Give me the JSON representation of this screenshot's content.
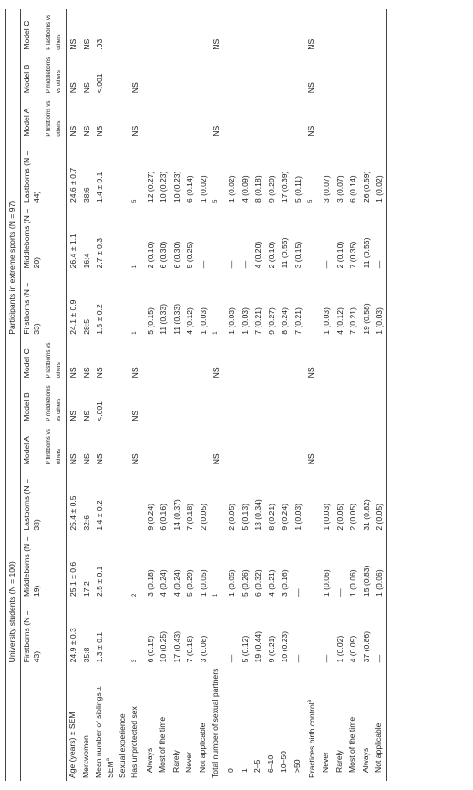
{
  "table": {
    "groups": [
      "University students (N = 100)",
      "Participants in extreme sports (N = 97)"
    ],
    "columns": [
      "Firstborns (N = 43)",
      "Middleborns (N = 19)",
      "Lastborns (N = 38)",
      "Model A",
      "Model B",
      "Model C",
      "Firstborns (N = 33)",
      "Middleborns (N = 20)",
      "Lastborns (N = 44)",
      "Model A",
      "Model B",
      "Model C"
    ],
    "subheaders": [
      "P firstborns vs others",
      "P middleborns vs others",
      "P lastborns vs others"
    ],
    "rows": [
      {
        "label": "Age (years) ± SEM",
        "cells": [
          "24.9 ± 0.3",
          "25.1 ± 0.6",
          "25.4 ± 0.5",
          "NS",
          "NS",
          "NS",
          "24.1 ± 0.9",
          "26.4 ± 1.1",
          "24.6 ± 0.7",
          "NS",
          "NS",
          "NS"
        ]
      },
      {
        "label": "Men:women",
        "cells": [
          "35:8",
          "17:2",
          "32:6",
          "NS",
          "NS",
          "NS",
          "28:5",
          "16:4",
          "38:6",
          "NS",
          "NS",
          "NS"
        ]
      },
      {
        "label": "Mean number of siblings ± SEM",
        "note": "a",
        "cells": [
          "1.3 ± 0.1",
          "2.5 ± 0.1",
          "1.4 ± 0.2",
          "NS",
          "<.001",
          "NS",
          "1.5 ± 0.2",
          "2.7 ± 0.3",
          "1.4 ± 0.1",
          "NS",
          "<.001",
          ".03"
        ]
      },
      {
        "label": "Sexual experience",
        "cells": [
          null,
          null,
          null,
          null,
          null,
          null,
          null,
          null,
          null,
          null,
          null,
          null
        ]
      },
      {
        "label": "Has unprotected sex",
        "cells": [
          "3",
          "2",
          null,
          "NS",
          "NS",
          "NS",
          "1",
          "1",
          "5",
          "NS",
          "NS",
          null
        ]
      },
      {
        "label": "Always",
        "indent": true,
        "cells": [
          "6 (0.15)",
          "3 (0.18)",
          "9 (0.24)",
          null,
          null,
          null,
          "5 (0.15)",
          "2 (0.10)",
          "12 (0.27)",
          null,
          null,
          null
        ]
      },
      {
        "label": "Most of the time",
        "indent": true,
        "cells": [
          "10 (0.25)",
          "4 (0.24)",
          "6 (0.16)",
          null,
          null,
          null,
          "11 (0.33)",
          "6 (0.30)",
          "10 (0.23)",
          null,
          null,
          null
        ]
      },
      {
        "label": "Rarely",
        "indent": true,
        "cells": [
          "17 (0.43)",
          "4 (0.24)",
          "14 (0.37)",
          null,
          null,
          null,
          "11 (0.33)",
          "6 (0.30)",
          "10 (0.23)",
          null,
          null,
          null
        ]
      },
      {
        "label": "Never",
        "indent": true,
        "cells": [
          "7 (0.18)",
          "5 (0.29)",
          "7 (0.18)",
          null,
          null,
          null,
          "4 (0.12)",
          "5 (0.25)",
          "6 (0.14)",
          null,
          null,
          null
        ]
      },
      {
        "label": "Not applicable",
        "indent": true,
        "cells": [
          "3 (0.08)",
          "1 (0.05)",
          "2 (0.05)",
          null,
          null,
          null,
          "1 (0.03)",
          "—",
          "1 (0.02)",
          null,
          null,
          null
        ]
      },
      {
        "label": "Total number of sexual partners",
        "cells": [
          null,
          "1",
          null,
          "NS",
          null,
          "NS",
          "1",
          null,
          "5",
          "NS",
          null,
          "NS"
        ]
      },
      {
        "label": "0",
        "indent": true,
        "cells": [
          "—",
          "1 (0.05)",
          "2 (0.05)",
          null,
          null,
          null,
          "1 (0.03)",
          "—",
          "1 (0.02)",
          null,
          null,
          null
        ]
      },
      {
        "label": "1",
        "indent": true,
        "cells": [
          "5 (0.12)",
          "5 (0.26)",
          "5 (0.13)",
          null,
          null,
          null,
          "1 (0.03)",
          "—",
          "4 (0.09)",
          null,
          null,
          null
        ]
      },
      {
        "label": "2–5",
        "indent": true,
        "cells": [
          "19 (0.44)",
          "6 (0.32)",
          "13 (0.34)",
          null,
          null,
          null,
          "7 (0.21)",
          "4 (0.20)",
          "8 (0.18)",
          null,
          null,
          null
        ]
      },
      {
        "label": "6–10",
        "indent": true,
        "cells": [
          "9 (0.21)",
          "4 (0.21)",
          "8 (0.21)",
          null,
          null,
          null,
          "9 (0.27)",
          "2 (0.10)",
          "9 (0.20)",
          null,
          null,
          null
        ]
      },
      {
        "label": "10–50",
        "indent": true,
        "cells": [
          "10 (0.23)",
          "3 (0.16)",
          "9 (0.24)",
          null,
          null,
          null,
          "8 (0.24)",
          "11 (0.55)",
          "17 (0.39)",
          null,
          null,
          null
        ]
      },
      {
        "label": ">50",
        "indent": true,
        "cells": [
          "—",
          "—",
          "1 (0.03)",
          null,
          null,
          null,
          "7 (0.21)",
          "3 (0.15)",
          "5 (0.11)",
          null,
          null,
          null
        ]
      },
      {
        "label": "Practices birth control",
        "note": "a",
        "cells": [
          null,
          null,
          null,
          "NS",
          null,
          "NS",
          null,
          null,
          "5",
          "NS",
          "NS",
          "NS"
        ]
      },
      {
        "label": "Never",
        "indent": true,
        "cells": [
          "—",
          "1 (0.06)",
          "1 (0.03)",
          null,
          null,
          null,
          "1 (0.03)",
          "—",
          "3 (0.07)",
          null,
          null,
          null
        ]
      },
      {
        "label": "Rarely",
        "indent": true,
        "cells": [
          "1 (0.02)",
          "—",
          "2 (0.05)",
          null,
          null,
          null,
          "4 (0.12)",
          "2 (0.10)",
          "3 (0.07)",
          null,
          null,
          null
        ]
      },
      {
        "label": "Most of the time",
        "indent": true,
        "cells": [
          "4 (0.09)",
          "1 (0.06)",
          "2 (0.05)",
          null,
          null,
          null,
          "7 (0.21)",
          "7 (0.35)",
          "6 (0.14)",
          null,
          null,
          null
        ]
      },
      {
        "label": "Always",
        "indent": true,
        "cells": [
          "37 (0.86)",
          "15 (0.83)",
          "31 (0.82)",
          null,
          null,
          null,
          "19 (0.58)",
          "11 (0.55)",
          "26 (0.59)",
          null,
          null,
          null
        ]
      },
      {
        "label": "Not applicable",
        "indent": true,
        "cells": [
          "—",
          "1 (0.06)",
          "2 (0.05)",
          null,
          null,
          null,
          "1 (0.03)",
          "—",
          "1 (0.02)",
          null,
          null,
          null
        ]
      }
    ]
  }
}
